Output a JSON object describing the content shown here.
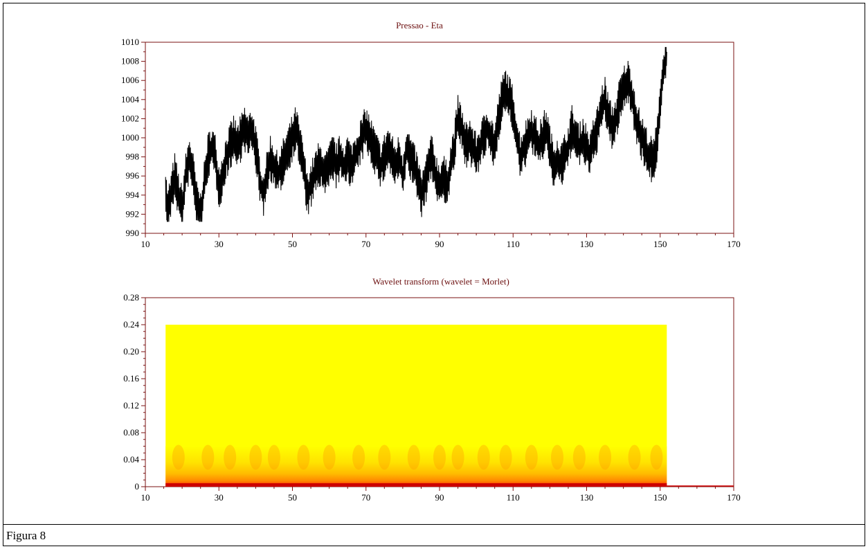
{
  "caption": "Figura 8",
  "colors": {
    "frame": "#000000",
    "title": "#6b0e0e",
    "axis_box": "#7a1010",
    "line": "#000000",
    "heat_yellow": "#ffff00",
    "heat_orange": "#ff9900",
    "heat_red": "#cc0000"
  },
  "chart_data": [
    {
      "type": "line",
      "title": "Pressao - Eta",
      "xlabel": "",
      "ylabel": "",
      "xlim": [
        10,
        170
      ],
      "ylim": [
        990,
        1010
      ],
      "xticks": [
        10,
        30,
        50,
        70,
        90,
        110,
        130,
        150,
        170
      ],
      "yticks": [
        990,
        992,
        994,
        996,
        998,
        1000,
        1002,
        1004,
        1006,
        1008,
        1010
      ],
      "grid": false,
      "series": [
        {
          "x": [
            15.5,
            16,
            17,
            18,
            19,
            20,
            21,
            22,
            23,
            24,
            25,
            26,
            27,
            28,
            29,
            30,
            31,
            32,
            33,
            34,
            35,
            36,
            37,
            38,
            39,
            40,
            41,
            42,
            43,
            44,
            45,
            46,
            47,
            48,
            49,
            50,
            51,
            52,
            53,
            54,
            55,
            56,
            57,
            58,
            59,
            60,
            61,
            62,
            63,
            64,
            65,
            66,
            67,
            68,
            69,
            70,
            71,
            72,
            73,
            74,
            75,
            76,
            77,
            78,
            79,
            80,
            81,
            82,
            83,
            84,
            85,
            86,
            87,
            88,
            89,
            90,
            91,
            92,
            93,
            94,
            95,
            96,
            97,
            98,
            99,
            100,
            101,
            102,
            103,
            104,
            105,
            106,
            107,
            108,
            109,
            110,
            111,
            112,
            113,
            114,
            115,
            116,
            117,
            118,
            119,
            120,
            121,
            122,
            123,
            124,
            125,
            126,
            127,
            128,
            129,
            130,
            131,
            132,
            133,
            134,
            135,
            136,
            137,
            138,
            139,
            140,
            141,
            142,
            143,
            144,
            145,
            146,
            147,
            148,
            149,
            150,
            151,
            151.8
          ],
          "values": [
            995,
            992,
            994,
            996,
            994,
            992.5,
            996,
            998,
            996,
            993,
            992,
            995,
            998,
            999,
            998,
            995,
            996,
            998,
            999,
            1000,
            999,
            1000,
            1001,
            1000,
            1001,
            999,
            996,
            994,
            996,
            998,
            997,
            996,
            997,
            998,
            999,
            1000,
            1001,
            999,
            997,
            994,
            995,
            996,
            997,
            997,
            996,
            997,
            998,
            997,
            998,
            997,
            998,
            997,
            998,
            999,
            1000,
            1001,
            1000,
            999,
            998,
            997,
            998,
            999,
            998,
            997,
            998,
            996,
            999,
            998,
            997,
            996,
            994,
            995,
            997,
            998,
            996,
            995,
            996,
            995,
            997,
            999,
            1002,
            1001,
            999,
            1000,
            999,
            998,
            999,
            1000,
            1001,
            1000,
            999,
            1002,
            1004,
            1005,
            1004,
            1003,
            1000,
            998,
            999,
            1000,
            1001,
            1000,
            999,
            1000,
            1001,
            999,
            997,
            998,
            997,
            998,
            999,
            1001,
            1000,
            999,
            1000,
            999,
            998,
            1000,
            1001,
            1003,
            1004,
            1002,
            1001,
            1002,
            1004,
            1005,
            1006,
            1005,
            1003,
            1001,
            1000,
            999,
            998,
            997.5,
            999,
            1004,
            1007,
            1009
          ]
        }
      ]
    },
    {
      "type": "heatmap",
      "title": "Wavelet transform (wavelet = Morlet)",
      "xlabel": "",
      "ylabel": "",
      "xlim": [
        10,
        170
      ],
      "ylim": [
        0,
        0.28
      ],
      "xticks": [
        10,
        30,
        50,
        70,
        90,
        110,
        130,
        150,
        170
      ],
      "yticks": [
        "0",
        "0.04",
        "0.08",
        "0.12",
        "0.16",
        "0.20",
        "0.24",
        "0.28"
      ],
      "grid": false,
      "x_range": [
        15.5,
        151.8
      ],
      "y_range": [
        0,
        0.24
      ],
      "colormap": [
        "#ffff00",
        "#ff9900",
        "#cc0000"
      ],
      "high_energy_band_top": 0.06,
      "crest_x": [
        19,
        27,
        33,
        40,
        45,
        53,
        60,
        68,
        75,
        83,
        90,
        95,
        102,
        108,
        115,
        122,
        128,
        135,
        143,
        149
      ]
    }
  ]
}
